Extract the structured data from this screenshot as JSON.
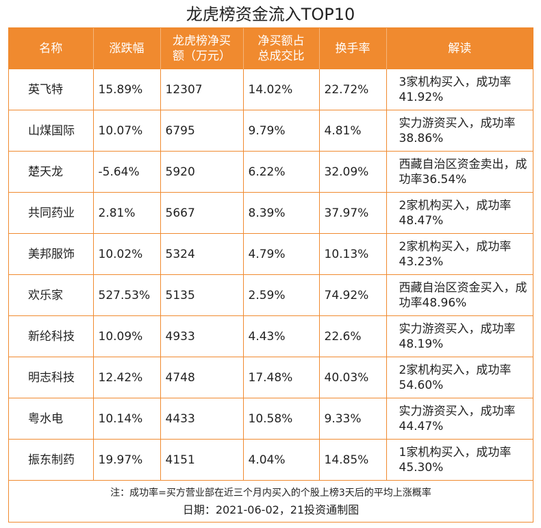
{
  "title": "龙虎榜资金流入TOP10",
  "headers": [
    "名称",
    "涨跌幅",
    "龙虎榜净买额（万元）",
    "净买额占总成交比",
    "换手率",
    "解读"
  ],
  "rows": [
    [
      "英飞特",
      "15.89%",
      "12307",
      "14.02%",
      "22.72%",
      "3家机构买入，成功率41.92%"
    ],
    [
      "山煤国际",
      "10.07%",
      "6795",
      "9.79%",
      "4.81%",
      "实力游资买入，成功率38.86%"
    ],
    [
      "楚天龙",
      "-5.64%",
      "5920",
      "6.22%",
      "32.09%",
      "西藏自治区资金卖出，成功率36.54%"
    ],
    [
      "共同药业",
      "2.81%",
      "5667",
      "8.39%",
      "37.97%",
      "2家机构买入，成功率48.47%"
    ],
    [
      "美邦服饰",
      "10.02%",
      "5324",
      "4.79%",
      "10.13%",
      "2家机构买入，成功率43.23%"
    ],
    [
      "欢乐家",
      "527.53%",
      "5135",
      "2.59%",
      "74.92%",
      "西藏自治区资金买入，成功率48.96%"
    ],
    [
      "新纶科技",
      "10.09%",
      "4933",
      "4.43%",
      "22.6%",
      "实力游资买入，成功率48.19%"
    ],
    [
      "明志科技",
      "12.42%",
      "4748",
      "17.48%",
      "40.03%",
      "2家机构买入，成功率54.60%"
    ],
    [
      "粤水电",
      "10.14%",
      "4433",
      "10.58%",
      "9.33%",
      "实力游资买入，成功率44.47%"
    ],
    [
      "振东制药",
      "19.97%",
      "4151",
      "4.04%",
      "14.85%",
      "1家机构买入，成功率45.30%"
    ]
  ],
  "note": "注：成功率=买方营业部在近三个月内买入的个股上榜3天后的平均上涨概率",
  "footer": "日期：2021-06-02，21投资通制图",
  "colors": {
    "accent": "#f08a2f",
    "header_text": "#ffffff"
  }
}
